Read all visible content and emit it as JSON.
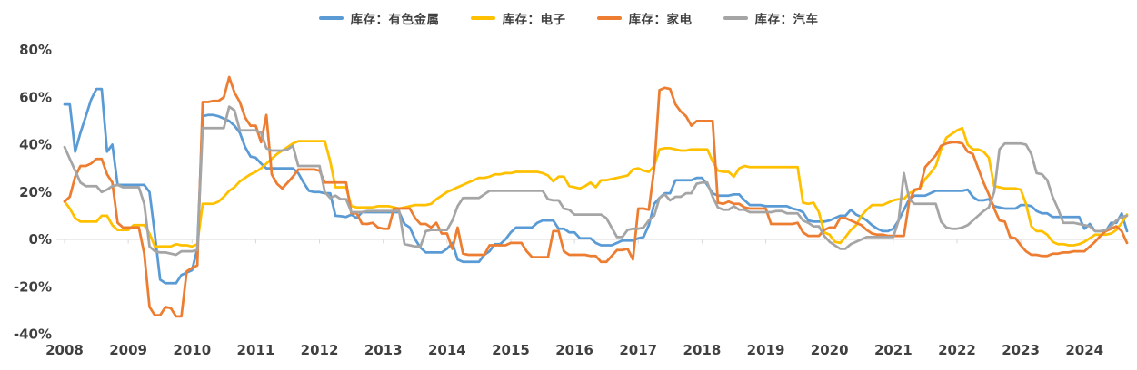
{
  "chart_data": {
    "type": "line",
    "title": "",
    "x_unit": "month",
    "x_range": [
      "2008-01",
      "2024-09"
    ],
    "categories": [
      "2008",
      "2009",
      "2010",
      "2011",
      "2012",
      "2013",
      "2014",
      "2015",
      "2016",
      "2017",
      "2018",
      "2019",
      "2020",
      "2021",
      "2022",
      "2023",
      "2024"
    ],
    "y_axis": {
      "tick_labels": [
        "80%",
        "60%",
        "40%",
        "20%",
        "0%",
        "-20%",
        "-40%"
      ],
      "tick_values": [
        80,
        60,
        40,
        20,
        0,
        -20,
        -40
      ],
      "min": -40,
      "max": 80,
      "unit": "%"
    },
    "grid": "zero-line-only",
    "grid_color": "#d9d9d9",
    "axis_text_color": "#404040",
    "legend_position": "top-center",
    "series": [
      {
        "key": "nonferrous-metals",
        "name": "库存：有色金属",
        "color": "#5B9BD5",
        "values": [
          57,
          57,
          37,
          45,
          52,
          59,
          63.5,
          63.5,
          37,
          40,
          23,
          23,
          23,
          23,
          23,
          23,
          20,
          2,
          -17,
          -18.5,
          -18.5,
          -18.5,
          -15,
          -14,
          -13,
          -4,
          52,
          52.5,
          52.5,
          52,
          51,
          50,
          48,
          45,
          39,
          35,
          34.5,
          32,
          30,
          30,
          30,
          30,
          30,
          30,
          28,
          24,
          20.5,
          20,
          20,
          19.5,
          19.5,
          10,
          9.8,
          9.5,
          10.5,
          9,
          11.5,
          11.5,
          11.5,
          11.5,
          11.5,
          11.5,
          11.5,
          11.5,
          6.5,
          5,
          0,
          -3.5,
          -5.5,
          -5.5,
          -5.5,
          -5.5,
          -4,
          -1.5,
          -8.5,
          -9.5,
          -9.5,
          -9.5,
          -9.5,
          -6.5,
          -5,
          -2,
          -2,
          0,
          3,
          5,
          5,
          5,
          5,
          7,
          8,
          8,
          8,
          4.5,
          4.5,
          3,
          3,
          0.5,
          0.5,
          0.5,
          -1.5,
          -2.5,
          -2.5,
          -2.5,
          -1.5,
          -0.5,
          -0.5,
          -0.5,
          0.5,
          1,
          6,
          15,
          17.5,
          19.5,
          19.5,
          25,
          25,
          25,
          25,
          26,
          26,
          23,
          19.5,
          18.5,
          18.5,
          18.5,
          19,
          19,
          16.5,
          14.5,
          14.5,
          14.5,
          14,
          14,
          14,
          14,
          14,
          13,
          12.5,
          11.5,
          8,
          7.5,
          7.5,
          7.5,
          8,
          9,
          10,
          10,
          12.5,
          10.5,
          9.5,
          8,
          6,
          4.5,
          3.5,
          3.5,
          4.5,
          8,
          12.5,
          17,
          18.5,
          18.5,
          18.5,
          19.5,
          20.5,
          20.5,
          20.5,
          20.5,
          20.5,
          20.5,
          21,
          18,
          16.5,
          16.5,
          17,
          14,
          13.5,
          13,
          13,
          13,
          14.5,
          14.5,
          14,
          12,
          11,
          11,
          9.5,
          9.5,
          9.5,
          9.5,
          9.5,
          9.5,
          4.5,
          6.5,
          3.5,
          3.5,
          3.5,
          7,
          7,
          11,
          3.5
        ]
      },
      {
        "key": "electronics",
        "name": "库存：电子",
        "color": "#FFC000",
        "values": [
          16,
          13,
          9,
          7.5,
          7.5,
          7.5,
          7.5,
          10,
          10,
          6,
          4,
          4,
          4,
          6,
          6,
          6,
          2.5,
          -3,
          -3,
          -3,
          -3,
          -2,
          -2.5,
          -2.5,
          -3,
          -2,
          15,
          15,
          15,
          16,
          18,
          20.5,
          22,
          24.5,
          26,
          27.5,
          28.5,
          30,
          32,
          34,
          36,
          37.5,
          39,
          40.5,
          41.5,
          41.5,
          41.5,
          41.5,
          41.5,
          41.5,
          33,
          22,
          22,
          22,
          14,
          13.5,
          13.5,
          13.5,
          13.5,
          14,
          14,
          14,
          13.5,
          13,
          13.5,
          14,
          14.5,
          14.5,
          14.5,
          15,
          17,
          18.5,
          20,
          21,
          22,
          23,
          24,
          25,
          26,
          26,
          26.5,
          27.5,
          27.5,
          28,
          28,
          28.5,
          28.5,
          28.5,
          28.5,
          28.5,
          28,
          27,
          24.5,
          26.5,
          26.5,
          22.5,
          22,
          21.5,
          22.5,
          24,
          22,
          25,
          25,
          25.5,
          26,
          26.5,
          27,
          29.5,
          30,
          29,
          28.5,
          31,
          38,
          38.5,
          38.5,
          38,
          37.5,
          37.5,
          38,
          38,
          38,
          38,
          33,
          29,
          28.5,
          28.5,
          26.5,
          30,
          31,
          30.5,
          30.5,
          30.5,
          30.5,
          30.5,
          30.5,
          30.5,
          30.5,
          30.5,
          30.5,
          15.5,
          15,
          15.5,
          11.5,
          3,
          2,
          -1,
          -1.5,
          1,
          4,
          6,
          10,
          12.5,
          14.5,
          14.5,
          14.5,
          15.5,
          16.5,
          17,
          17,
          19.5,
          20.5,
          21.5,
          25.5,
          28,
          31,
          38,
          43,
          44.5,
          46,
          47,
          40,
          38,
          38,
          37,
          34.5,
          22.5,
          22,
          21.5,
          21.5,
          21.5,
          21,
          15,
          5.5,
          3.5,
          3.5,
          2,
          -1,
          -2,
          -2,
          -2.5,
          -2.5,
          -2,
          -1,
          0.5,
          2,
          2,
          2,
          2.5,
          4,
          7,
          10.5
        ]
      },
      {
        "key": "home-appliances",
        "name": "库存：家电",
        "color": "#ED7D31",
        "values": [
          16,
          18,
          26.5,
          31,
          31,
          32,
          34,
          34,
          27.5,
          24,
          7,
          5,
          5,
          5,
          5,
          -6,
          -28.5,
          -32,
          -32,
          -28.5,
          -29,
          -32.5,
          -32.5,
          -13.5,
          -12,
          -11,
          58,
          58,
          58.5,
          58.5,
          60,
          68.5,
          62,
          58,
          51.5,
          48,
          48,
          41,
          52.5,
          27.5,
          23.5,
          21.5,
          24,
          26.5,
          29.5,
          29.5,
          29.5,
          29.5,
          29,
          24,
          24,
          24,
          24,
          24,
          11,
          11,
          6.6,
          6.5,
          7,
          5,
          4.5,
          4.5,
          13,
          13,
          13,
          13,
          9,
          6.5,
          6.5,
          5,
          7,
          2.5,
          2.5,
          -4,
          5,
          -6,
          -6.5,
          -6.5,
          -6.5,
          -6.5,
          -2.5,
          -2.5,
          -2.5,
          -2.5,
          -1.5,
          -1.5,
          -1.5,
          -5,
          -7.5,
          -7.5,
          -7.5,
          -7.5,
          3.5,
          3.5,
          -5,
          -6.5,
          -6.5,
          -6.5,
          -6.5,
          -7,
          -7,
          -9.5,
          -9.5,
          -7,
          -4.5,
          -4.5,
          -4,
          -8.5,
          13,
          13,
          12.5,
          30,
          63,
          64,
          63.5,
          57,
          54,
          52,
          48,
          50,
          50,
          50,
          50,
          15.5,
          15,
          16,
          15,
          15,
          13.5,
          13,
          13,
          13,
          13,
          6.5,
          6.5,
          6.5,
          6.5,
          6.5,
          7,
          3,
          1.5,
          1.5,
          1.5,
          4,
          5,
          5,
          9,
          9,
          8,
          7,
          6,
          4,
          2.5,
          2,
          2,
          1.5,
          1.5,
          1.5,
          1.5,
          16,
          21,
          21.5,
          30.5,
          33,
          35.5,
          39.5,
          40.5,
          41,
          41,
          40.5,
          37,
          36,
          30,
          24,
          19,
          13,
          8,
          7.5,
          1,
          0.5,
          -2.5,
          -5,
          -6.5,
          -6.5,
          -7,
          -7,
          -6,
          -6,
          -5.5,
          -5.5,
          -5,
          -5,
          -5,
          -3,
          -1,
          1.5,
          3.5,
          4.5,
          5.5,
          3.5,
          -1.5
        ]
      },
      {
        "key": "autos",
        "name": "库存：汽车",
        "color": "#A5A5A5",
        "values": [
          39,
          34,
          29,
          24,
          22.5,
          22.5,
          22.5,
          20,
          21,
          22.5,
          23,
          22,
          22,
          22,
          22,
          15,
          -3,
          -5,
          -5.5,
          -5.5,
          -6,
          -6.5,
          -5,
          -5,
          -5,
          -4.5,
          47,
          47,
          47,
          47,
          47,
          56,
          54.5,
          46,
          46,
          46,
          46,
          45,
          38.5,
          37.5,
          37.5,
          37.5,
          38,
          39.5,
          31,
          31,
          31,
          31,
          31,
          20,
          17.5,
          18.5,
          17,
          17,
          11.5,
          11.5,
          11.5,
          12,
          12,
          12,
          12,
          12,
          12,
          12,
          -2,
          -2.5,
          -3,
          -3,
          3.5,
          4,
          4,
          4,
          4,
          8,
          14,
          17.5,
          17.5,
          17.5,
          17.5,
          19,
          20.5,
          20.5,
          20.5,
          20.5,
          20.5,
          20.5,
          20.5,
          20.5,
          20.5,
          20.5,
          20.5,
          17,
          16.5,
          16.5,
          13,
          12.5,
          10.5,
          10.5,
          10.5,
          10.5,
          10.5,
          10.5,
          9,
          5,
          1,
          1,
          4,
          4.5,
          4.5,
          5,
          8,
          10,
          17.5,
          19,
          16.5,
          18,
          18,
          19.5,
          19.5,
          23.5,
          24,
          24,
          18,
          13.5,
          12.5,
          12.5,
          14,
          12.5,
          12.5,
          11.5,
          11.5,
          11.5,
          11.5,
          11.5,
          12,
          12,
          11,
          11,
          11,
          8,
          7,
          5.5,
          5.5,
          1.5,
          -1,
          -2.5,
          -4,
          -4,
          -2,
          -1,
          0,
          1,
          1,
          1,
          1,
          1,
          1,
          8,
          28,
          17,
          15,
          15,
          15,
          15,
          15,
          7.5,
          5,
          4.5,
          4.5,
          5,
          6,
          8,
          10,
          12,
          13.5,
          20,
          38,
          40.5,
          40.5,
          40.5,
          40.5,
          40,
          36,
          28,
          27.5,
          25,
          18,
          13,
          7,
          7,
          7,
          6.5,
          6,
          5.5,
          3.5,
          3.5,
          4,
          5.5,
          8,
          9.5,
          10
        ]
      }
    ]
  }
}
